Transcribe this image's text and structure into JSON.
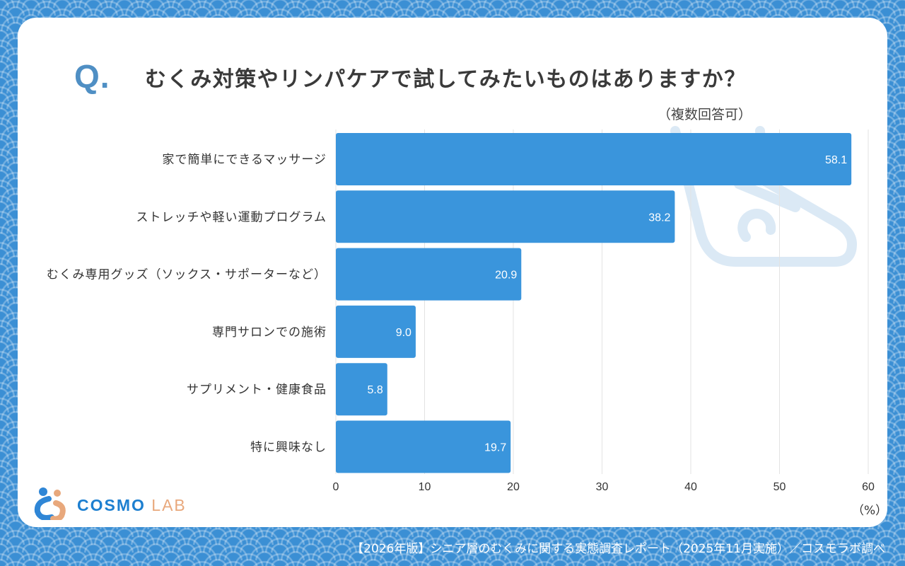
{
  "question": {
    "mark": "Q.",
    "text": "むくみ対策やリンパケアで試してみたいものはありますか？",
    "note": "（複数回答可）"
  },
  "chart_data": {
    "type": "bar",
    "orientation": "horizontal",
    "categories": [
      "家で簡単にできるマッサージ",
      "ストレッチや軽い運動プログラム",
      "むくみ専用グッズ（ソックス・サポーターなど）",
      "専門サロンでの施術",
      "サプリメント・健康食品",
      "特に興味なし"
    ],
    "values": [
      58.1,
      38.2,
      20.9,
      9.0,
      5.8,
      19.7
    ],
    "value_labels": [
      "58.1",
      "38.2",
      "20.9",
      "9.0",
      "5.8",
      "19.7"
    ],
    "xlim": [
      0,
      60
    ],
    "xticks": [
      0,
      10,
      20,
      30,
      40,
      50,
      60
    ],
    "xlabel": "（%）",
    "grid": true,
    "bar_color": "#3a95dc"
  },
  "logo": {
    "name": "COSMO",
    "suffix": "LAB"
  },
  "footer": "【2026年版】シニア層のむくみに関する実態調査レポート（2025年11月実施）／コスモラボ調べ",
  "colors": {
    "background": "#3b8fd4",
    "accent": "#4f8fc4",
    "bar": "#3a95dc",
    "logo_orange": "#e8a87c"
  }
}
